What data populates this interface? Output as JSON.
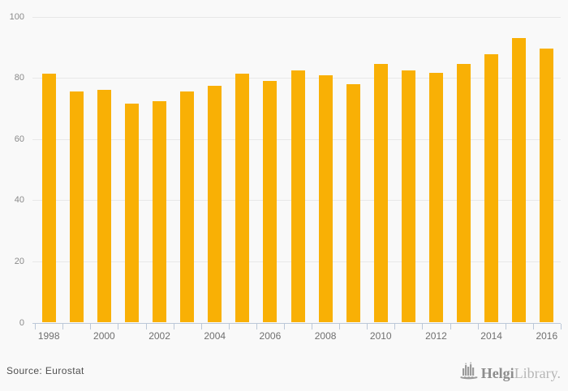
{
  "chart_data": {
    "type": "bar",
    "title": "",
    "xlabel": "",
    "ylabel": "",
    "categories": [
      "1998",
      "1999",
      "2000",
      "2001",
      "2002",
      "2003",
      "2004",
      "2005",
      "2006",
      "2007",
      "2008",
      "2009",
      "2010",
      "2011",
      "2012",
      "2013",
      "2014",
      "2015",
      "2016"
    ],
    "values": [
      81.4,
      75.4,
      76.0,
      71.5,
      72.3,
      75.4,
      77.5,
      81.4,
      79.0,
      82.4,
      80.8,
      77.8,
      84.6,
      82.3,
      81.5,
      84.6,
      87.8,
      93.1,
      89.5
    ],
    "ylim": [
      0,
      100
    ],
    "yticks": [
      0,
      20,
      40,
      60,
      80,
      100
    ],
    "xtick_labels": [
      "1998",
      "2000",
      "2002",
      "2004",
      "2006",
      "2008",
      "2010",
      "2012",
      "2014",
      "2016"
    ],
    "grid": true,
    "legend": false
  },
  "colors": {
    "bar": "#F9B005",
    "background": "#f9f9f9",
    "gridline": "#e8e8e8",
    "axis": "#bcc8d8",
    "y_axis_text": "#8a8a8a",
    "x_axis_text": "#6f6f6f",
    "source_text": "#4f4f4f",
    "logo_primary": "#8d8d8d",
    "logo_secondary": "#b6b6b6"
  },
  "footer": {
    "source_label": "Source: Eurostat",
    "logo_primary": "Helgi",
    "logo_secondary": "Library."
  }
}
